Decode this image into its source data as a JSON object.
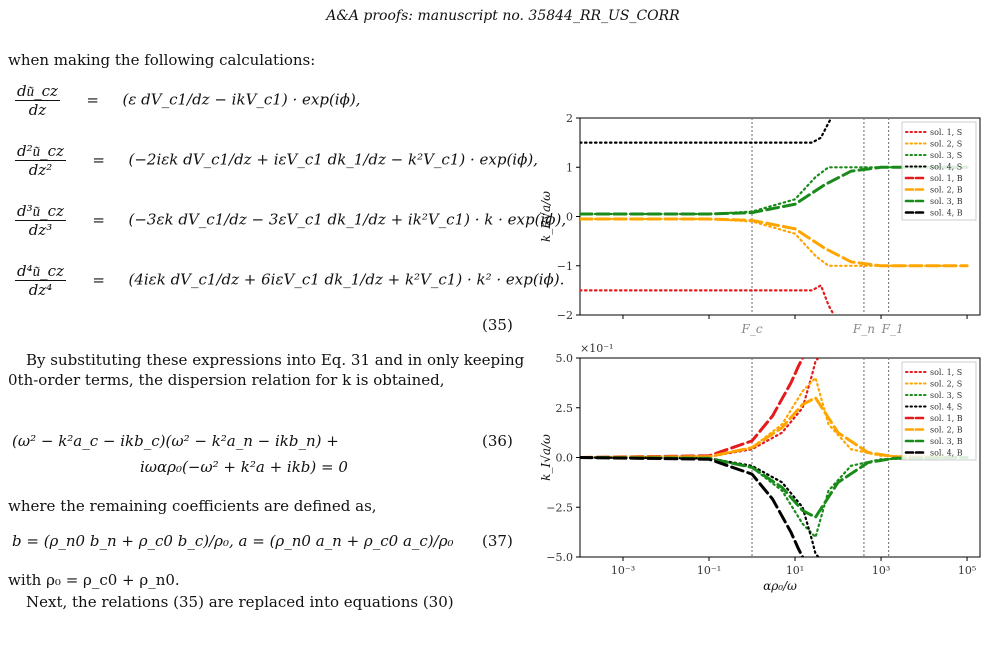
{
  "header": "A&A proofs: manuscript no. 35844_RR_US_CORR",
  "text": {
    "intro": "when making the following calculations:",
    "eq35_num": "(35)",
    "p1": "By substituting these expressions into Eq. 31 and in only keeping 0th-order terms, the dispersion relation for k is obtained,",
    "eq36_line1": "(ω² − k²a_c − ikb_c)(ω² − k²a_n − ikb_n) +",
    "eq36_line2": "iωαρ₀(−ω² + k²a + ikb) = 0",
    "eq36_num": "(36)",
    "p2": "where the remaining coefficients are defined as,",
    "eq37": "b = (ρ_n0 b_n + ρ_c0 b_c)/ρ₀,    a = (ρ_n0 a_n + ρ_c0 a_c)/ρ₀",
    "eq37_num": "(37)",
    "p3": "with ρ₀ = ρ_c0 + ρ_n0.",
    "p4": "Next, the relations (35) are replaced into equations (30)"
  },
  "equations": [
    {
      "lhs_num": "du͂_cz",
      "lhs_den": "dz",
      "rhs": "(ε dV_c1/dz − ikV_c1) · exp(iϕ),"
    },
    {
      "lhs_num": "d²u͂_cz",
      "lhs_den": "dz²",
      "rhs": "(−2iεk dV_c1/dz + iεV_c1 dk_1/dz − k²V_c1) · exp(iϕ),"
    },
    {
      "lhs_num": "d³u͂_cz",
      "lhs_den": "dz³",
      "rhs": "(−3εk dV_c1/dz − 3εV_c1 dk_1/dz + ik²V_c1) · k · exp(iϕ),"
    },
    {
      "lhs_num": "d⁴u͂_cz",
      "lhs_den": "dz⁴",
      "rhs": "(4iεk dV_c1/dz + 6iεV_c1 dk_1/dz + k²V_c1) · k² · exp(iϕ)."
    }
  ],
  "legend": [
    "sol. 1, S",
    "sol. 2, S",
    "sol. 3, S",
    "sol. 4, S",
    "sol. 1, B",
    "sol. 2, B",
    "sol. 3, B",
    "sol. 4, B"
  ],
  "colors": {
    "red": "#e41a1c",
    "orange": "#ffa500",
    "green": "#1a8a1a",
    "black": "#000000",
    "vline": "#808080"
  },
  "chart_data": [
    {
      "type": "line",
      "ylabel": "k_R√a/ω",
      "ylim": [
        -2,
        2
      ],
      "yticks": [
        "2",
        "1",
        "0",
        "−1",
        "−2"
      ],
      "xscale": "log",
      "xlim": [
        0.0001,
        200000
      ],
      "vlines": [
        {
          "label": "F_c",
          "x": 1
        },
        {
          "label": "F_n",
          "x": 400
        },
        {
          "label": "F_1",
          "x": 1500
        }
      ],
      "series": [
        {
          "name": "sol. 1, S",
          "style": "dotted",
          "color": "red",
          "x": [
            0.0001,
            1,
            10,
            25,
            40,
            60,
            80
          ],
          "y": [
            -1.5,
            -1.5,
            -1.5,
            -1.5,
            -1.4,
            -1.8,
            -2.0
          ]
        },
        {
          "name": "sol. 2, S",
          "style": "dotted",
          "color": "orange",
          "x": [
            0.0001,
            0.1,
            1,
            10,
            30,
            60,
            200,
            100000
          ],
          "y": [
            -0.05,
            -0.05,
            -0.1,
            -0.35,
            -0.8,
            -1.0,
            -1.0,
            -1.0
          ]
        },
        {
          "name": "sol. 3, S",
          "style": "dotted",
          "color": "green",
          "x": [
            0.0001,
            0.1,
            1,
            10,
            30,
            60,
            200,
            100000
          ],
          "y": [
            0.05,
            0.05,
            0.1,
            0.35,
            0.8,
            1.0,
            1.0,
            1.0
          ]
        },
        {
          "name": "sol. 4, S",
          "style": "dotted",
          "color": "black",
          "x": [
            0.0001,
            1,
            10,
            25,
            40,
            60,
            70
          ],
          "y": [
            1.5,
            1.5,
            1.5,
            1.5,
            1.6,
            1.9,
            2.0
          ]
        },
        {
          "name": "sol. 2, B",
          "style": "dashed",
          "color": "orange",
          "x": [
            0.0001,
            0.1,
            1,
            10,
            50,
            200,
            1000,
            100000
          ],
          "y": [
            -0.05,
            -0.05,
            -0.08,
            -0.25,
            -0.65,
            -0.92,
            -1.0,
            -1.0
          ]
        },
        {
          "name": "sol. 3, B",
          "style": "dashed",
          "color": "green",
          "x": [
            0.0001,
            0.1,
            1,
            10,
            50,
            200,
            1000,
            100000
          ],
          "y": [
            0.05,
            0.05,
            0.08,
            0.25,
            0.65,
            0.92,
            1.0,
            1.0
          ]
        }
      ]
    },
    {
      "type": "line",
      "ylabel": "k_I√a/ω",
      "xlabel": "αρ₀/ω",
      "scale_label": "×10⁻¹",
      "ylim": [
        -0.6,
        0.6
      ],
      "yticks": [
        "5.0",
        "2.5",
        "0.0",
        "−2.5",
        "−5.0"
      ],
      "xscale": "log",
      "xlim": [
        0.0001,
        200000
      ],
      "xticks": [
        "10⁻³",
        "10⁻¹",
        "10¹",
        "10³",
        "10⁵"
      ],
      "vlines": [
        {
          "label": "F_c",
          "x": 1
        },
        {
          "label": "F_n",
          "x": 400
        },
        {
          "label": "F_1",
          "x": 1500
        }
      ],
      "series": [
        {
          "name": "sol. 1, S",
          "style": "dotted",
          "color": "red",
          "x": [
            0.0001,
            0.1,
            1,
            5,
            15,
            25,
            30,
            35
          ],
          "y": [
            0,
            0.005,
            0.05,
            0.15,
            0.3,
            0.5,
            0.58,
            0.6
          ]
        },
        {
          "name": "sol. 2, S",
          "style": "dotted",
          "color": "orange",
          "x": [
            0.0001,
            0.1,
            1,
            5,
            15,
            30,
            60,
            200,
            1000,
            100000
          ],
          "y": [
            0,
            0.005,
            0.06,
            0.2,
            0.4,
            0.48,
            0.2,
            0.05,
            0.01,
            0
          ]
        },
        {
          "name": "sol. 3, S",
          "style": "dotted",
          "color": "green",
          "x": [
            0.0001,
            0.1,
            1,
            5,
            15,
            30,
            60,
            200,
            1000,
            100000
          ],
          "y": [
            0,
            -0.005,
            -0.06,
            -0.2,
            -0.4,
            -0.48,
            -0.2,
            -0.05,
            -0.01,
            0
          ]
        },
        {
          "name": "sol. 4, S",
          "style": "dotted",
          "color": "black",
          "x": [
            0.0001,
            0.1,
            1,
            5,
            15,
            25,
            30,
            35
          ],
          "y": [
            0,
            -0.005,
            -0.05,
            -0.15,
            -0.3,
            -0.5,
            -0.58,
            -0.6
          ]
        },
        {
          "name": "sol. 1, B",
          "style": "dashed",
          "color": "red",
          "x": [
            0.0001,
            0.1,
            1,
            3,
            8,
            12,
            15
          ],
          "y": [
            0,
            0.01,
            0.1,
            0.25,
            0.45,
            0.55,
            0.6
          ]
        },
        {
          "name": "sol. 2, B",
          "style": "dashed",
          "color": "orange",
          "x": [
            0.0001,
            0.1,
            1,
            5,
            15,
            30,
            100,
            500,
            2000,
            100000
          ],
          "y": [
            0,
            0.005,
            0.06,
            0.18,
            0.32,
            0.36,
            0.15,
            0.03,
            0.005,
            0
          ]
        },
        {
          "name": "sol. 3, B",
          "style": "dashed",
          "color": "green",
          "x": [
            0.0001,
            0.1,
            1,
            5,
            15,
            30,
            100,
            500,
            2000,
            100000
          ],
          "y": [
            0,
            -0.005,
            -0.06,
            -0.18,
            -0.32,
            -0.36,
            -0.15,
            -0.03,
            -0.005,
            0
          ]
        },
        {
          "name": "sol. 4, B",
          "style": "dashed",
          "color": "black",
          "x": [
            0.0001,
            0.1,
            1,
            3,
            8,
            12,
            15
          ],
          "y": [
            0,
            -0.01,
            -0.1,
            -0.25,
            -0.45,
            -0.55,
            -0.6
          ]
        }
      ]
    }
  ]
}
